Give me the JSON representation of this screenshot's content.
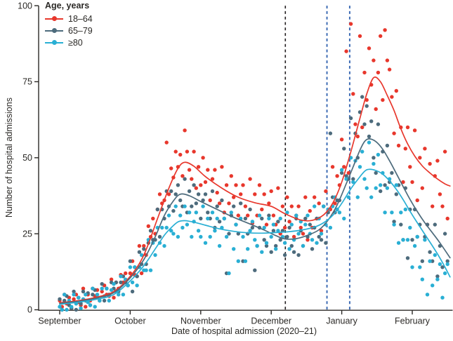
{
  "figure": {
    "y_axis_title": "Number of hospital admissions",
    "x_axis_title": "Date of hospital admission (2020–21)"
  },
  "legend": {
    "title": "Age, years",
    "entries": [
      {
        "label": "18–64",
        "color": "#e8372c"
      },
      {
        "label": "65–79",
        "color": "#4d6b7c"
      },
      {
        "label": "≥80",
        "color": "#29afd4"
      }
    ]
  },
  "chart_data": {
    "type": "scatter",
    "title": "",
    "xlabel": "Date of hospital admission (2020–21)",
    "ylabel": "Number of hospital admissions",
    "ylim": [
      0,
      100
    ],
    "y_ticks": [
      0,
      25,
      50,
      75,
      100
    ],
    "x_tick_labels": [
      "September",
      "October",
      "November",
      "December",
      "January",
      "February"
    ],
    "month_lengths": [
      30,
      31,
      30,
      31,
      31,
      28
    ],
    "x_domain_days": 168,
    "grid": false,
    "legend_position": "top-left",
    "points_format": "flat [day,value] pairs, day 0 = Sept 1",
    "vlines": [
      {
        "name": "black-dashed-early-december",
        "day": 97.2,
        "color": "#231f20",
        "style": "dashed"
      },
      {
        "name": "blue-dashed-late-december",
        "day": 115.5,
        "color": "#3f6db5",
        "style": "dashed"
      },
      {
        "name": "blue-dashed-early-january",
        "day": 125.5,
        "color": "#3f6db5",
        "style": "dashed"
      }
    ],
    "series": [
      {
        "name": "18–64",
        "color": "#e8372c",
        "trend": [
          0,
          2.3,
          8,
          3,
          16,
          4.2,
          23,
          6,
          30,
          11,
          36,
          18,
          42,
          30,
          47,
          40,
          51,
          46.5,
          54,
          48.5,
          58,
          47.2,
          63,
          43.8,
          70,
          40,
          77,
          37,
          84,
          35.2,
          91,
          34,
          97,
          31.6,
          104,
          29.5,
          109,
          29.4,
          114,
          31.2,
          118,
          35,
          122,
          42,
          126,
          52,
          130,
          63,
          133,
          71,
          136,
          76.3,
          139,
          75,
          142,
          70.5,
          145,
          65.5,
          148,
          59.5,
          151,
          54.5,
          154,
          50.5,
          157,
          47.3,
          160,
          45,
          163,
          43,
          166,
          41.4,
          168,
          40.7
        ],
        "points": [
          0,
          3,
          1,
          1,
          2,
          5,
          3,
          2,
          4,
          4,
          5,
          0.5,
          6,
          3.5,
          7,
          5,
          8,
          2.5,
          9,
          1.5,
          10,
          7,
          11,
          1,
          12,
          5,
          13,
          3,
          14,
          7,
          15,
          4.5,
          16,
          6.5,
          17,
          3,
          18,
          6,
          19,
          8,
          20,
          5,
          21,
          4.5,
          22,
          10,
          23,
          4,
          24,
          9,
          25,
          7,
          26,
          11.5,
          27,
          9,
          28,
          12,
          29,
          8,
          30,
          12,
          31,
          16,
          32,
          11.5,
          33,
          11,
          34,
          21,
          35,
          12,
          36,
          21,
          37,
          18,
          38,
          27.5,
          39,
          24,
          40,
          30,
          41,
          25,
          42,
          33,
          43,
          38,
          44,
          35,
          45,
          36,
          46,
          55,
          47,
          38,
          48,
          46.5,
          49,
          43.5,
          50,
          52,
          51,
          47,
          52,
          51,
          53,
          44,
          54,
          59,
          55,
          52,
          56,
          46,
          57,
          43,
          58,
          52,
          59,
          40,
          60,
          47,
          61,
          41,
          62,
          50,
          63,
          42,
          64,
          46,
          65,
          36,
          66,
          43,
          67,
          46,
          68,
          38.5,
          69,
          35,
          70,
          47,
          71,
          32,
          72,
          41,
          73,
          35,
          74,
          44,
          75,
          37,
          76,
          41,
          77,
          31,
          78,
          38,
          79,
          41,
          80,
          34,
          81,
          31,
          82,
          43,
          83,
          28.5,
          84,
          38,
          85,
          31,
          86,
          41,
          87,
          33,
          88,
          38,
          89,
          28,
          90,
          35,
          91,
          39,
          92,
          31,
          93,
          28,
          94,
          40,
          95,
          25,
          96,
          34,
          97,
          27,
          98,
          37,
          99,
          29,
          100,
          34,
          101,
          24,
          102,
          31,
          103,
          34,
          104,
          27,
          105,
          25,
          106,
          37,
          107,
          23,
          108,
          32.5,
          109,
          27,
          110,
          37,
          111,
          30,
          112,
          35,
          113,
          26,
          114,
          34,
          115,
          39,
          116,
          33,
          117,
          33,
          118,
          47,
          119,
          35,
          120,
          44,
          121,
          41,
          122,
          56,
          123,
          47,
          124,
          85,
          125,
          45,
          126,
          94,
          127,
          71,
          128,
          61,
          129,
          57,
          130,
          90,
          131,
          60,
          132,
          78,
          133,
          69,
          134,
          86,
          135,
          74,
          136,
          82,
          137,
          66,
          138,
          78,
          139,
          90,
          140,
          69,
          141,
          92,
          142,
          82,
          143,
          79,
          144,
          70,
          145,
          58,
          146,
          72,
          147,
          54,
          148,
          60,
          149,
          42,
          150,
          53,
          151,
          60,
          152,
          47,
          153,
          42,
          154,
          59,
          155,
          36,
          156,
          50,
          157,
          40,
          158,
          53,
          159,
          28,
          160,
          48,
          161,
          34,
          162,
          44,
          163,
          49,
          164,
          38,
          165,
          34,
          166,
          52,
          167,
          30
        ]
      },
      {
        "name": "65–79",
        "color": "#4d6b7c",
        "trend": [
          0,
          2.1,
          8,
          2.8,
          16,
          3.9,
          23,
          5.6,
          30,
          10.5,
          36,
          16.5,
          41,
          24,
          45,
          31,
          49,
          35.8,
          52,
          38,
          56,
          37.5,
          61,
          35.6,
          68,
          33,
          75,
          30.4,
          82,
          28.2,
          88,
          26.2,
          93,
          24.4,
          97,
          23.3,
          102,
          23.4,
          107,
          24.5,
          112,
          26.3,
          116,
          29.5,
          120,
          34.5,
          124,
          41.5,
          127,
          47,
          130,
          52.5,
          132,
          55.3,
          134,
          56.2,
          137,
          55.3,
          140,
          52.8,
          143,
          49,
          146,
          44.8,
          149,
          40.5,
          152,
          36.3,
          155,
          32.3,
          158,
          28.6,
          161,
          25.3,
          164,
          22,
          168,
          17.1
        ],
        "points": [
          0,
          3.5,
          1,
          0,
          2,
          3,
          3,
          4.5,
          4,
          1.5,
          5,
          0.5,
          6,
          6,
          7,
          0,
          8,
          4,
          9,
          2,
          10,
          6,
          11,
          3,
          12,
          5.5,
          13,
          1.5,
          14,
          5,
          15,
          6.5,
          16,
          4,
          17,
          3,
          18,
          8.5,
          19,
          3,
          20,
          7,
          21,
          5,
          22,
          9,
          23,
          7,
          24,
          9,
          25,
          6,
          26,
          9,
          27,
          11,
          28,
          9,
          29,
          8,
          30,
          16,
          31,
          6,
          32,
          14,
          33,
          11,
          34,
          19,
          35,
          15,
          36,
          20,
          37,
          15,
          38,
          22,
          39,
          26,
          40,
          23,
          41,
          23,
          42,
          33,
          43,
          24,
          44,
          33,
          45,
          30,
          46,
          39,
          47,
          34,
          48,
          39,
          49,
          32.5,
          50,
          38,
          51,
          41,
          52,
          36,
          53,
          34,
          54,
          43,
          55,
          32,
          56,
          39,
          57,
          34,
          58,
          41,
          59,
          35,
          60,
          38,
          61,
          30,
          62,
          36,
          63,
          38,
          64,
          32,
          65,
          30,
          66,
          39,
          67,
          27,
          68,
          34,
          69,
          29,
          70,
          36,
          71,
          30,
          72,
          12,
          73,
          25,
          74,
          31,
          75,
          34,
          76,
          28,
          77,
          25,
          78,
          35,
          79,
          16,
          80,
          30,
          81,
          25,
          82,
          33,
          83,
          27,
          84,
          13,
          85,
          21,
          86,
          27,
          87,
          30,
          88,
          23,
          89,
          21,
          90,
          31,
          91,
          19,
          92,
          26,
          93,
          21,
          94,
          29,
          95,
          23,
          96,
          26,
          97,
          18,
          98,
          24,
          99,
          27,
          100,
          21,
          101,
          19,
          102,
          30,
          103,
          18,
          104,
          26,
          105,
          21,
          106,
          30,
          107,
          24,
          108,
          28,
          109,
          20,
          110,
          27,
          111,
          30,
          112,
          24,
          113,
          23,
          114,
          34,
          115,
          22,
          116,
          32,
          117,
          58,
          118,
          37,
          119,
          32,
          120,
          36,
          121,
          36,
          122,
          45,
          123,
          53,
          124,
          44,
          125,
          43,
          126,
          63,
          127,
          43,
          128,
          58,
          129,
          50,
          130,
          65,
          131,
          70,
          132,
          61,
          133,
          67,
          134,
          57,
          135,
          62,
          136,
          50,
          137,
          45,
          138,
          61,
          139,
          39,
          140,
          52,
          141,
          41,
          142,
          54,
          143,
          42,
          144,
          45,
          145,
          29,
          146,
          38,
          147,
          41,
          148,
          28,
          149,
          23,
          150,
          40,
          151,
          17,
          152,
          33,
          153,
          23,
          154,
          33,
          155,
          24,
          156,
          28,
          157,
          16,
          158,
          24,
          159,
          28,
          160,
          19,
          161,
          16,
          162,
          28,
          163,
          11,
          164,
          21,
          165,
          14,
          166,
          25,
          167,
          16
        ]
      },
      {
        "name": "≥80",
        "color": "#29afd4",
        "trend": [
          0,
          1.8,
          8,
          2.5,
          16,
          3.5,
          23,
          5,
          30,
          9.5,
          36,
          14.5,
          41,
          20,
          45,
          24.5,
          48,
          27,
          51,
          28.9,
          54,
          29.3,
          58,
          28.8,
          63,
          27.8,
          69,
          26.6,
          75,
          25.8,
          81,
          25.3,
          87,
          25.2,
          93,
          25.4,
          99,
          25.7,
          105,
          26.3,
          110,
          27.2,
          114,
          28.6,
          118,
          31,
          122,
          35,
          126,
          39.8,
          129,
          42.8,
          132,
          45.5,
          134,
          46.2,
          137,
          45.8,
          140,
          44.6,
          143,
          42.4,
          146,
          39.6,
          149,
          36.2,
          152,
          32.4,
          155,
          28.6,
          158,
          24.8,
          161,
          21,
          164,
          17,
          166,
          14,
          168,
          10.8
        ],
        "points": [
          0,
          1,
          1,
          0,
          2,
          5,
          3,
          0,
          4,
          3,
          5,
          1,
          6,
          5,
          7,
          2,
          8,
          4,
          9,
          0.5,
          10,
          3.5,
          11,
          5,
          12,
          2.5,
          13,
          1.5,
          14,
          7,
          15,
          1,
          16,
          5,
          17,
          3,
          18,
          7,
          19,
          4.5,
          20,
          7,
          21,
          3,
          22,
          6.5,
          23,
          8.5,
          24,
          6,
          25,
          5,
          26,
          11,
          27,
          5,
          28,
          10,
          29,
          8,
          30,
          14,
          31,
          9,
          32,
          14,
          33,
          8,
          34,
          14,
          35,
          18,
          36,
          13,
          37,
          13,
          38,
          23,
          39,
          13,
          40,
          22,
          41,
          18,
          42,
          27,
          43,
          22,
          44,
          27,
          45,
          21,
          46,
          27,
          47,
          31,
          48,
          26,
          49,
          25,
          50,
          34,
          51,
          24,
          52,
          31,
          53,
          27,
          54,
          34,
          55,
          28,
          56,
          32,
          57,
          24,
          58,
          29,
          59,
          32,
          60,
          26,
          61,
          24,
          62,
          34,
          63,
          22,
          64,
          30,
          65,
          24,
          66,
          32,
          67,
          26,
          68,
          30,
          69,
          21,
          70,
          27,
          71,
          30,
          72,
          24,
          73,
          12,
          74,
          32,
          75,
          20,
          76,
          28,
          77,
          16,
          78,
          30,
          79,
          24,
          80,
          16,
          81,
          20,
          82,
          26,
          83,
          29,
          84,
          23,
          85,
          21,
          86,
          31,
          87,
          19,
          88,
          27,
          89,
          22,
          90,
          30,
          91,
          24,
          92,
          28,
          93,
          20,
          94,
          26,
          95,
          30,
          96,
          24,
          97,
          22,
          98,
          32,
          99,
          20,
          100,
          28,
          101,
          23,
          102,
          31,
          103,
          25,
          104,
          29,
          105,
          21,
          106,
          28,
          107,
          31,
          108,
          25,
          109,
          23,
          110,
          34,
          111,
          22,
          112,
          30,
          113,
          25,
          114,
          34,
          115,
          28,
          116,
          33,
          117,
          27,
          118,
          34,
          119,
          37,
          120,
          33,
          121,
          32,
          122,
          46,
          123,
          30,
          124,
          43,
          125,
          37,
          126,
          50,
          127,
          42,
          128,
          49,
          129,
          37,
          130,
          47,
          131,
          52,
          132,
          43,
          133,
          40,
          134,
          55,
          135,
          37,
          136,
          48,
          137,
          40,
          138,
          51,
          139,
          41,
          140,
          45,
          141,
          32,
          142,
          40,
          143,
          43,
          144,
          32,
          145,
          28,
          146,
          41,
          147,
          22,
          148,
          32,
          149,
          23,
          150,
          33,
          151,
          23,
          152,
          27,
          153,
          14,
          154,
          21,
          155,
          24,
          156,
          14,
          157,
          10,
          158,
          23,
          159,
          5,
          160,
          16,
          161,
          8,
          162,
          18,
          163,
          10,
          164,
          15,
          165,
          4,
          166,
          12,
          167,
          15
        ]
      }
    ]
  }
}
